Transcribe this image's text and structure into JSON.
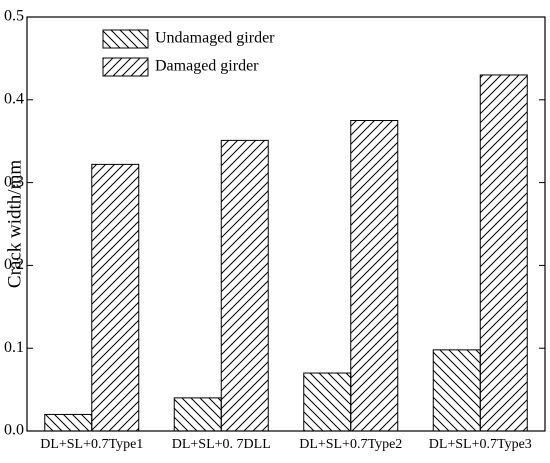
{
  "chart_data": {
    "type": "bar",
    "ylabel": "Crack width/mm",
    "categories": [
      "DL+SL+0.7Type1",
      "DL+SL+0. 7DLL",
      "DL+SL+0.7Type2",
      "DL+SL+0.7Type3"
    ],
    "series": [
      {
        "name": "Undamaged girder",
        "color": "#000000",
        "values": [
          0.02,
          0.04,
          0.07,
          0.098
        ]
      },
      {
        "name": "Damaged girder",
        "color": "#000000",
        "values": [
          0.322,
          0.351,
          0.375,
          0.43
        ]
      }
    ],
    "ylim": [
      0,
      0.5
    ],
    "yticks": [
      {
        "value": 0,
        "label": "0.0"
      },
      0.1,
      0.2,
      0.3,
      0.4,
      0.5
    ],
    "legend": "upper left",
    "grid": false
  }
}
